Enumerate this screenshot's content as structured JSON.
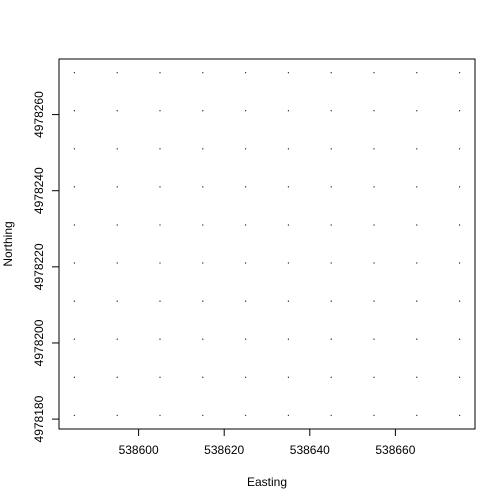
{
  "chart_data": {
    "type": "scatter",
    "title": "",
    "xlabel": "Easting",
    "ylabel": "Northing",
    "x_ticks": [
      538600,
      538620,
      538640,
      538660
    ],
    "y_ticks": [
      4978180,
      4978200,
      4978220,
      4978240,
      4978260
    ],
    "x": [
      538585,
      538595,
      538605,
      538615,
      538625,
      538635,
      538645,
      538655,
      538665,
      538675
    ],
    "y": [
      4978181,
      4978191,
      4978201,
      4978211,
      4978221,
      4978231,
      4978241,
      4978251,
      4978261,
      4978271
    ],
    "xlim": [
      538581.4,
      538678.6
    ],
    "ylim": [
      4978177.4,
      4978274.6
    ],
    "grid": false,
    "point_color": "#000000"
  }
}
